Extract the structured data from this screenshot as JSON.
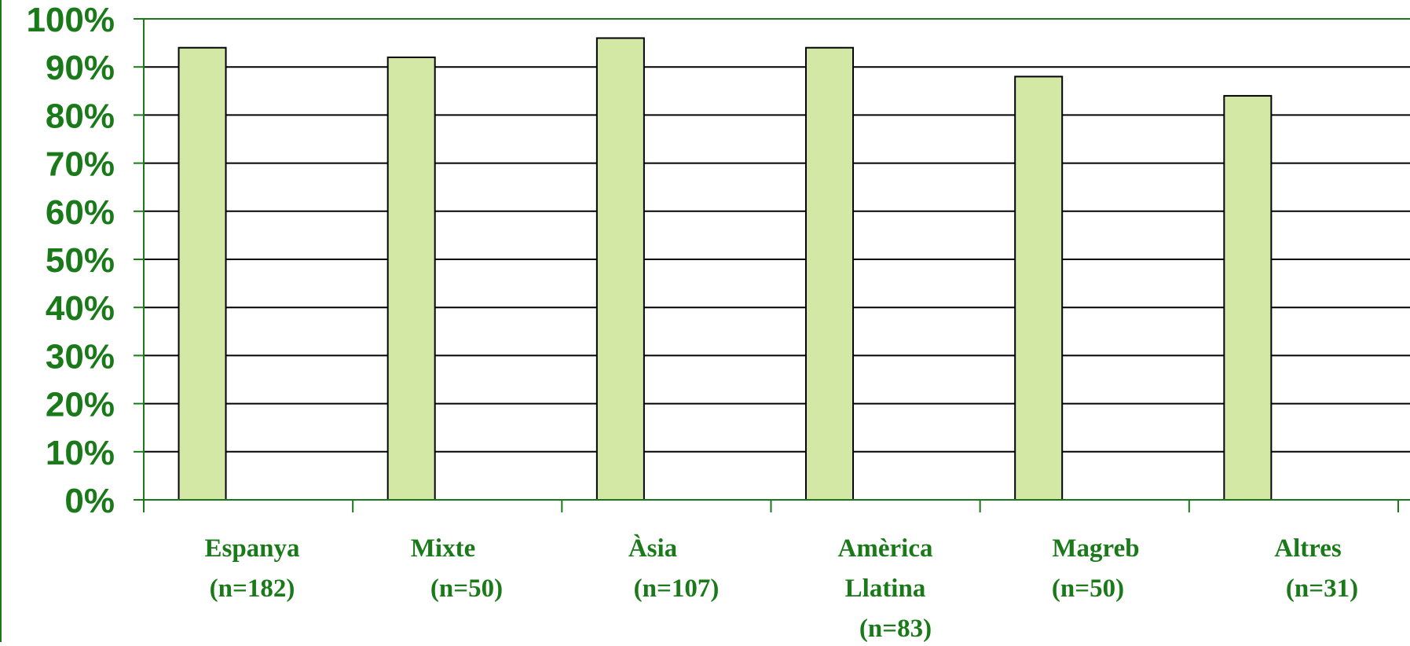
{
  "chart_data": {
    "type": "bar",
    "categories": [
      [
        "Espanya",
        "(n=182)"
      ],
      [
        "Mixte",
        "(n=50)"
      ],
      [
        "Àsia",
        "(n=107)"
      ],
      [
        "Amèrica",
        "Llatina",
        "(n=83)"
      ],
      [
        "Magreb",
        "(n=50)"
      ],
      [
        "Altres",
        "(n=31)"
      ]
    ],
    "values": [
      94,
      92,
      96,
      94,
      88,
      84
    ],
    "ylim": [
      0,
      100
    ],
    "yticks": [
      "0%",
      "10%",
      "20%",
      "30%",
      "40%",
      "50%",
      "60%",
      "70%",
      "80%",
      "90%",
      "100%"
    ],
    "title": "",
    "xlabel": "",
    "ylabel": "",
    "grid": true,
    "legend": "none",
    "colors": {
      "bar_fill": "#d4e8a6",
      "bar_stroke": "#000000",
      "gridline": "#000000",
      "axis": "#1a7a1a",
      "tick_text": "#1a7a1a"
    }
  }
}
